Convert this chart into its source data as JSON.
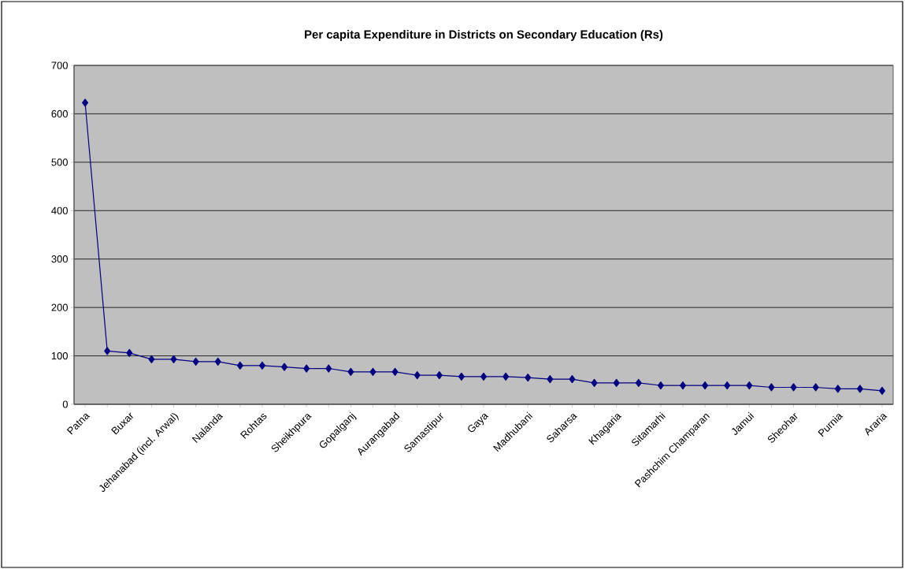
{
  "chart_data": {
    "type": "line",
    "title": "Per capita Expenditure in Districts on Secondary Education (Rs)",
    "categories": [
      "Patna",
      null,
      "Buxar",
      null,
      "Jehanabad (incl. Arwal)",
      null,
      "Nalanda",
      null,
      "Rohtas",
      null,
      "Sheikhpura",
      null,
      "Gopalganj",
      null,
      "Aurangabad",
      null,
      "Samastipur",
      null,
      "Gaya",
      null,
      "Madhubani",
      null,
      "Saharsa",
      null,
      "Khagaria",
      null,
      "Sitamarhi",
      null,
      "Pashchim Champaran",
      null,
      "Jamui",
      null,
      "Sheohar",
      null,
      "Purnia",
      null,
      "Araria"
    ],
    "values": [
      623,
      110,
      106,
      93,
      93,
      88,
      88,
      80,
      80,
      77,
      74,
      74,
      67,
      67,
      67,
      60,
      60,
      57,
      57,
      57,
      55,
      52,
      52,
      44,
      44,
      44,
      39,
      39,
      39,
      39,
      39,
      35,
      35,
      35,
      32,
      32,
      28
    ],
    "color": "#000080",
    "marker": "diamond",
    "line_style": "solid",
    "ylim": [
      0,
      700
    ],
    "yticks": [
      0,
      100,
      200,
      300,
      400,
      500,
      600,
      700
    ],
    "grid": "y"
  }
}
